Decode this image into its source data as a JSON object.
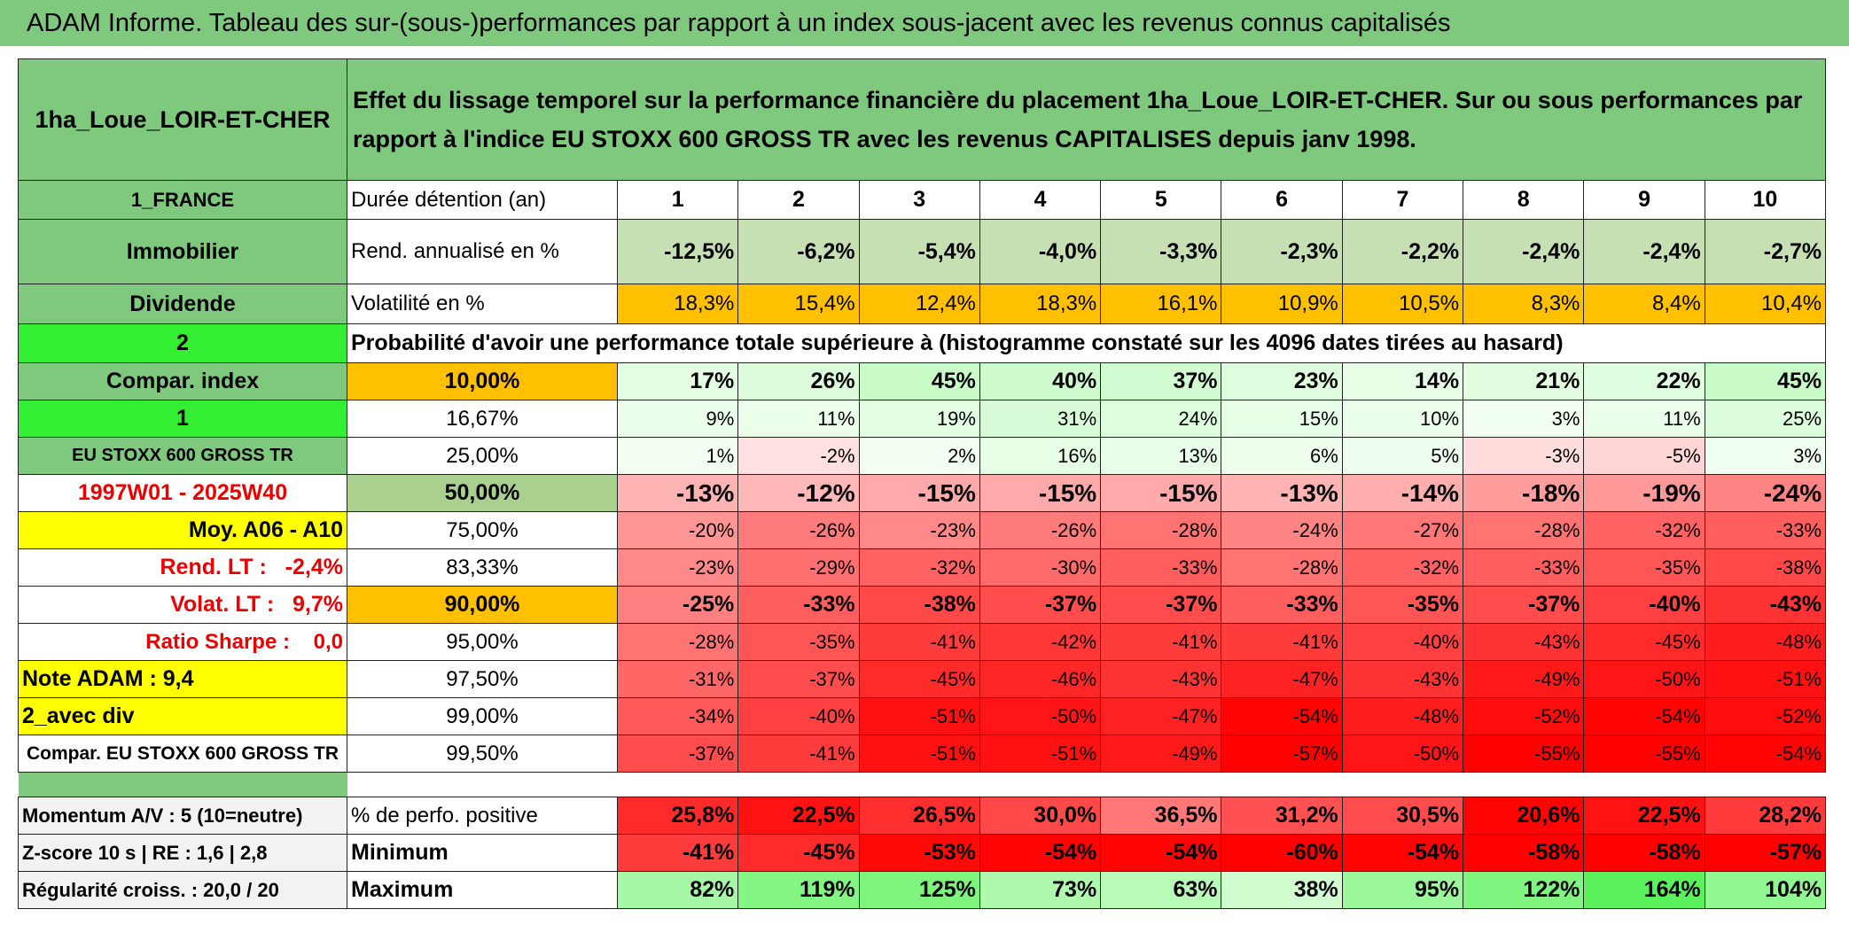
{
  "header": {
    "title": "ADAM Informe. Tableau des sur-(sous-)performances par rapport à un index sous-jacent avec les revenus connus capitalisés"
  },
  "table": {
    "name": "1ha_Loue_LOIR-ET-CHER",
    "description": "Effet du lissage temporel sur la performance financière du placement 1ha_Loue_LOIR-ET-CHER. Sur ou sous performances par rapport à l'indice EU STOXX 600 GROSS TR avec les revenus CAPITALISES depuis janv 1998.",
    "rows": [
      {
        "left": "1_FRANCE",
        "label": "Durée détention (an)",
        "cells": [
          1,
          2,
          3,
          4,
          5,
          6,
          7,
          8,
          9,
          10
        ]
      },
      {
        "left": "Immobilier",
        "label": "Rend. annualisé en %",
        "cells": [
          "-12,5%",
          "-6,2%",
          "-5,4%",
          "-4,0%",
          "-3,3%",
          "-2,3%",
          "-2,2%",
          "-2,4%",
          "-2,4%",
          "-2,7%"
        ]
      },
      {
        "left": "Dividende",
        "label": "Volatilité en %",
        "cells": [
          "18,3%",
          "15,4%",
          "12,4%",
          "18,3%",
          "16,1%",
          "10,9%",
          "10,5%",
          "8,3%",
          "8,4%",
          "10,4%"
        ]
      },
      {
        "left": "2",
        "label": "Probabilité d'avoir une performance totale supérieure à (histogramme constaté sur les 4096 dates tirées au hasard)"
      },
      {
        "left": "Compar. index",
        "label": "10,00%",
        "cells": [
          "17%",
          "26%",
          "45%",
          "40%",
          "37%",
          "23%",
          "14%",
          "21%",
          "22%",
          "45%"
        ]
      },
      {
        "left": "1",
        "label": "16,67%",
        "cells": [
          "9%",
          "11%",
          "19%",
          "31%",
          "24%",
          "15%",
          "10%",
          "3%",
          "11%",
          "25%"
        ]
      },
      {
        "left": "EU STOXX 600 GROSS TR",
        "label": "25,00%",
        "cells": [
          "1%",
          "-2%",
          "2%",
          "16%",
          "13%",
          "6%",
          "5%",
          "-3%",
          "-5%",
          "3%"
        ]
      },
      {
        "left": "1997W01 - 2025W40",
        "label": "50,00%",
        "cells": [
          "-13%",
          "-12%",
          "-15%",
          "-15%",
          "-15%",
          "-13%",
          "-14%",
          "-18%",
          "-19%",
          "-24%"
        ]
      },
      {
        "left": "Moy. A06 - A10",
        "label": "75,00%",
        "cells": [
          "-20%",
          "-26%",
          "-23%",
          "-26%",
          "-28%",
          "-24%",
          "-27%",
          "-28%",
          "-32%",
          "-33%"
        ]
      },
      {
        "left": "Rend. LT :   -2,4%",
        "label": "83,33%",
        "cells": [
          "-23%",
          "-29%",
          "-32%",
          "-30%",
          "-33%",
          "-28%",
          "-32%",
          "-33%",
          "-35%",
          "-38%"
        ]
      },
      {
        "left": "Volat. LT :   9,7%",
        "label": "90,00%",
        "cells": [
          "-25%",
          "-33%",
          "-38%",
          "-37%",
          "-37%",
          "-33%",
          "-35%",
          "-37%",
          "-40%",
          "-43%"
        ]
      },
      {
        "left": "Ratio Sharpe :    0,0",
        "label": "95,00%",
        "cells": [
          "-28%",
          "-35%",
          "-41%",
          "-42%",
          "-41%",
          "-41%",
          "-40%",
          "-43%",
          "-45%",
          "-48%"
        ]
      },
      {
        "left": "Note ADAM : 9,4",
        "label": "97,50%",
        "cells": [
          "-31%",
          "-37%",
          "-45%",
          "-46%",
          "-43%",
          "-47%",
          "-43%",
          "-49%",
          "-50%",
          "-51%"
        ]
      },
      {
        "left": "2_avec div",
        "label": "99,00%",
        "cells": [
          "-34%",
          "-40%",
          "-51%",
          "-50%",
          "-47%",
          "-54%",
          "-48%",
          "-52%",
          "-54%",
          "-52%"
        ]
      },
      {
        "left": "Compar. EU STOXX 600 GROSS TR",
        "label": "99,50%",
        "cells": [
          "-37%",
          "-41%",
          "-51%",
          "-51%",
          "-49%",
          "-57%",
          "-50%",
          "-55%",
          "-55%",
          "-54%"
        ]
      },
      {
        "left": "Momentum A/V : 5 (10=neutre)",
        "label": "% de perfo. positive",
        "cells": [
          "25,8%",
          "22,5%",
          "26,5%",
          "30,0%",
          "36,5%",
          "31,2%",
          "30,5%",
          "20,6%",
          "22,5%",
          "28,2%"
        ]
      },
      {
        "left": "Z-score 10 s | RE : 1,6 | 2,8",
        "label": "Minimum",
        "cells": [
          "-41%",
          "-45%",
          "-53%",
          "-54%",
          "-54%",
          "-60%",
          "-54%",
          "-58%",
          "-58%",
          "-57%"
        ]
      },
      {
        "left": "Régularité croiss. : 20,0 / 20",
        "label": "Maximum",
        "cells": [
          "82%",
          "119%",
          "125%",
          "73%",
          "63%",
          "38%",
          "95%",
          "122%",
          "164%",
          "104%"
        ]
      }
    ]
  }
}
